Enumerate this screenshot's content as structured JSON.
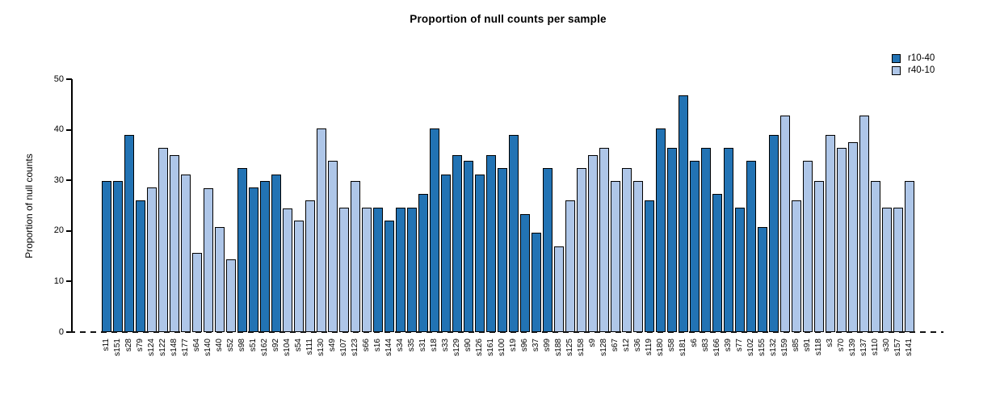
{
  "title": "Proportion of null counts per sample",
  "y_axis": {
    "label": "Proportion of null counts"
  },
  "legend": {
    "items": [
      {
        "label": "r10-40",
        "color": "#2273B4"
      },
      {
        "label": "r40-10",
        "color": "#AEC6E8"
      }
    ]
  },
  "chart_data": {
    "type": "bar",
    "title": "Proportion of null counts per sample",
    "xlabel": "",
    "ylabel": "Proportion of null counts",
    "ylim": [
      0,
      50
    ],
    "yticks": [
      0,
      10,
      20,
      30,
      40,
      50
    ],
    "grid": false,
    "legend_position": "top-right",
    "bar_border_color": "#000000",
    "zero_line_style": "dashed",
    "series_colors": {
      "r10-40": "#2273B4",
      "r40-10": "#AEC6E8"
    },
    "samples": [
      {
        "label": "s11",
        "value": 29.8,
        "series": "r10-40"
      },
      {
        "label": "s151",
        "value": 29.8,
        "series": "r10-40"
      },
      {
        "label": "s28",
        "value": 39.0,
        "series": "r10-40"
      },
      {
        "label": "s79",
        "value": 26.0,
        "series": "r10-40"
      },
      {
        "label": "s124",
        "value": 28.6,
        "series": "r40-10"
      },
      {
        "label": "s122",
        "value": 36.4,
        "series": "r40-10"
      },
      {
        "label": "s148",
        "value": 35.0,
        "series": "r40-10"
      },
      {
        "label": "s177",
        "value": 31.2,
        "series": "r40-10"
      },
      {
        "label": "s64",
        "value": 15.6,
        "series": "r40-10"
      },
      {
        "label": "s140",
        "value": 28.5,
        "series": "r40-10"
      },
      {
        "label": "s40",
        "value": 20.7,
        "series": "r40-10"
      },
      {
        "label": "s52",
        "value": 14.3,
        "series": "r40-10"
      },
      {
        "label": "s98",
        "value": 32.4,
        "series": "r10-40"
      },
      {
        "label": "s51",
        "value": 28.6,
        "series": "r10-40"
      },
      {
        "label": "s162",
        "value": 29.8,
        "series": "r10-40"
      },
      {
        "label": "s92",
        "value": 31.2,
        "series": "r10-40"
      },
      {
        "label": "s104",
        "value": 24.5,
        "series": "r40-10"
      },
      {
        "label": "s54",
        "value": 22.1,
        "series": "r40-10"
      },
      {
        "label": "s111",
        "value": 26.1,
        "series": "r40-10"
      },
      {
        "label": "s130",
        "value": 40.2,
        "series": "r40-10"
      },
      {
        "label": "s49",
        "value": 33.8,
        "series": "r40-10"
      },
      {
        "label": "s107",
        "value": 24.6,
        "series": "r40-10"
      },
      {
        "label": "s123",
        "value": 29.8,
        "series": "r40-10"
      },
      {
        "label": "s66",
        "value": 24.6,
        "series": "r40-10"
      },
      {
        "label": "s16",
        "value": 24.6,
        "series": "r10-40"
      },
      {
        "label": "s144",
        "value": 22.1,
        "series": "r10-40"
      },
      {
        "label": "s34",
        "value": 24.6,
        "series": "r10-40"
      },
      {
        "label": "s35",
        "value": 24.6,
        "series": "r10-40"
      },
      {
        "label": "s31",
        "value": 27.3,
        "series": "r10-40"
      },
      {
        "label": "s18",
        "value": 40.2,
        "series": "r10-40"
      },
      {
        "label": "s33",
        "value": 31.2,
        "series": "r10-40"
      },
      {
        "label": "s129",
        "value": 35.0,
        "series": "r10-40"
      },
      {
        "label": "s90",
        "value": 33.8,
        "series": "r10-40"
      },
      {
        "label": "s126",
        "value": 31.2,
        "series": "r10-40"
      },
      {
        "label": "s161",
        "value": 35.0,
        "series": "r10-40"
      },
      {
        "label": "s100",
        "value": 32.4,
        "series": "r10-40"
      },
      {
        "label": "s19",
        "value": 39.0,
        "series": "r10-40"
      },
      {
        "label": "s96",
        "value": 23.4,
        "series": "r10-40"
      },
      {
        "label": "s37",
        "value": 19.6,
        "series": "r10-40"
      },
      {
        "label": "s99",
        "value": 32.4,
        "series": "r10-40"
      },
      {
        "label": "s188",
        "value": 16.9,
        "series": "r40-10"
      },
      {
        "label": "s125",
        "value": 26.0,
        "series": "r40-10"
      },
      {
        "label": "s158",
        "value": 32.4,
        "series": "r40-10"
      },
      {
        "label": "s9",
        "value": 35.0,
        "series": "r40-10"
      },
      {
        "label": "s128",
        "value": 36.4,
        "series": "r40-10"
      },
      {
        "label": "s67",
        "value": 29.8,
        "series": "r40-10"
      },
      {
        "label": "s12",
        "value": 32.4,
        "series": "r40-10"
      },
      {
        "label": "s36",
        "value": 29.8,
        "series": "r40-10"
      },
      {
        "label": "s119",
        "value": 26.0,
        "series": "r10-40"
      },
      {
        "label": "s180",
        "value": 40.2,
        "series": "r10-40"
      },
      {
        "label": "s58",
        "value": 36.4,
        "series": "r10-40"
      },
      {
        "label": "s181",
        "value": 46.8,
        "series": "r10-40"
      },
      {
        "label": "s6",
        "value": 33.8,
        "series": "r10-40"
      },
      {
        "label": "s83",
        "value": 36.4,
        "series": "r10-40"
      },
      {
        "label": "s166",
        "value": 27.3,
        "series": "r10-40"
      },
      {
        "label": "s39",
        "value": 36.4,
        "series": "r10-40"
      },
      {
        "label": "s77",
        "value": 24.6,
        "series": "r10-40"
      },
      {
        "label": "s102",
        "value": 33.8,
        "series": "r10-40"
      },
      {
        "label": "s155",
        "value": 20.8,
        "series": "r10-40"
      },
      {
        "label": "s132",
        "value": 39.0,
        "series": "r10-40"
      },
      {
        "label": "s159",
        "value": 42.8,
        "series": "r40-10"
      },
      {
        "label": "s85",
        "value": 26.0,
        "series": "r40-10"
      },
      {
        "label": "s91",
        "value": 33.8,
        "series": "r40-10"
      },
      {
        "label": "s118",
        "value": 29.8,
        "series": "r40-10"
      },
      {
        "label": "s3",
        "value": 39.0,
        "series": "r40-10"
      },
      {
        "label": "s70",
        "value": 36.4,
        "series": "r40-10"
      },
      {
        "label": "s139",
        "value": 37.5,
        "series": "r40-10"
      },
      {
        "label": "s137",
        "value": 42.8,
        "series": "r40-10"
      },
      {
        "label": "s110",
        "value": 29.8,
        "series": "r40-10"
      },
      {
        "label": "s30",
        "value": 24.6,
        "series": "r40-10"
      },
      {
        "label": "s157",
        "value": 24.6,
        "series": "r40-10"
      },
      {
        "label": "s141",
        "value": 29.8,
        "series": "r40-10"
      }
    ]
  }
}
